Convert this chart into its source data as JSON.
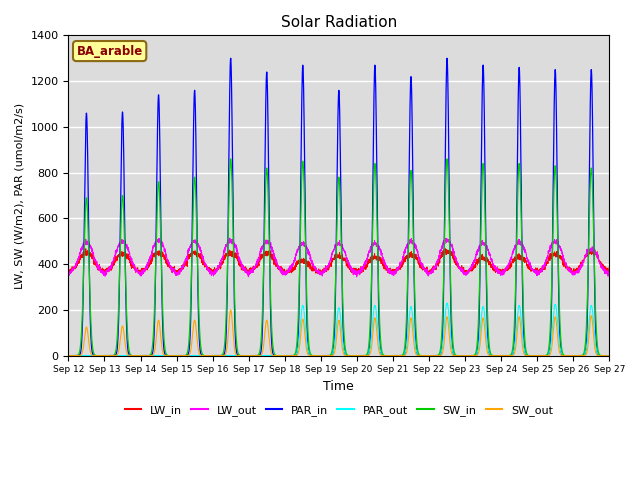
{
  "title": "Solar Radiation",
  "xlabel": "Time",
  "ylabel": "LW, SW (W/m2), PAR (umol/m2/s)",
  "ylim": [
    0,
    1400
  ],
  "annotation": "BA_arable",
  "annotation_color": "#8B0000",
  "annotation_bg": "#FFFF99",
  "background_color": "#DCDCDC",
  "start_day": 12,
  "end_day": 27,
  "n_days": 15,
  "colors": {
    "LW_in": "#FF0000",
    "LW_out": "#FF00FF",
    "PAR_in": "#0000FF",
    "PAR_out": "#00FFFF",
    "SW_in": "#00CC00",
    "SW_out": "#FFA500"
  },
  "par_in_peaks": [
    1060,
    1065,
    1140,
    1160,
    1300,
    1240,
    1270,
    1160,
    1270,
    1220,
    1300,
    1270,
    1260,
    1250,
    1250
  ],
  "par_out_peaks": [
    0,
    0,
    0,
    0,
    0,
    0,
    220,
    210,
    220,
    215,
    230,
    215,
    220,
    225,
    220
  ],
  "sw_in_peaks": [
    690,
    700,
    760,
    780,
    860,
    820,
    850,
    780,
    840,
    810,
    860,
    840,
    840,
    830,
    820
  ],
  "sw_out_peaks": [
    125,
    130,
    155,
    155,
    200,
    155,
    160,
    155,
    165,
    165,
    170,
    165,
    170,
    170,
    175
  ],
  "lw_in_base": 370,
  "lw_in_peaks": [
    450,
    445,
    450,
    450,
    450,
    450,
    415,
    435,
    430,
    440,
    455,
    425,
    430,
    445,
    455
  ],
  "lw_out_base": 360,
  "lw_out_peaks": [
    495,
    500,
    505,
    500,
    505,
    500,
    490,
    490,
    490,
    500,
    505,
    490,
    495,
    500,
    465
  ]
}
